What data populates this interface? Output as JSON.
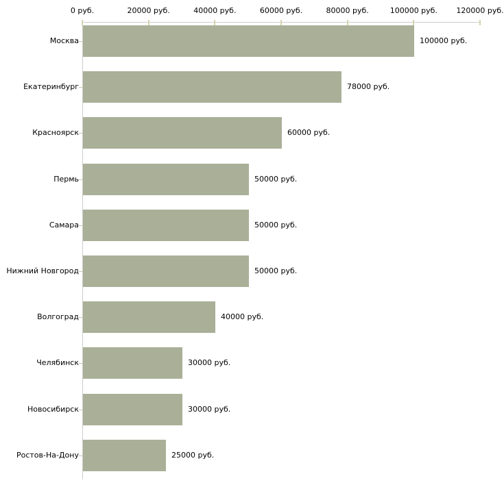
{
  "chart_data": {
    "type": "bar",
    "orientation": "horizontal",
    "title": "",
    "xlabel": "",
    "ylabel": "",
    "unit": "руб.",
    "grid": false,
    "legend": false,
    "categories": [
      "Москва",
      "Екатеринбург",
      "Красноярск",
      "Пермь",
      "Самара",
      "Нижний Новгород",
      "Волгоград",
      "Челябинск",
      "Новосибирск",
      "Ростов-На-Дону"
    ],
    "values": [
      100000,
      78000,
      60000,
      50000,
      50000,
      50000,
      40000,
      30000,
      30000,
      25000
    ],
    "value_labels": [
      "100000 руб.",
      "78000 руб.",
      "60000 руб.",
      "50000 руб.",
      "50000 руб.",
      "50000 руб.",
      "40000 руб.",
      "30000 руб.",
      "30000 руб.",
      "25000 руб."
    ],
    "x_axis": {
      "position": "top",
      "range": [
        0,
        120000
      ],
      "ticks": [
        0,
        20000,
        40000,
        60000,
        80000,
        100000,
        120000
      ],
      "tick_labels": [
        "0 руб.",
        "20000 руб.",
        "40000 руб.",
        "60000 руб.",
        "80000 руб.",
        "100000 руб.",
        "120000 руб."
      ]
    }
  },
  "colors": {
    "bar_fill": "#aab098",
    "axis_line": "#cccccc",
    "x_tick_mark": "#d6d3b0",
    "y_tick_mark": "#c9c6ae",
    "label_text": "#000000",
    "background": "#ffffff"
  }
}
